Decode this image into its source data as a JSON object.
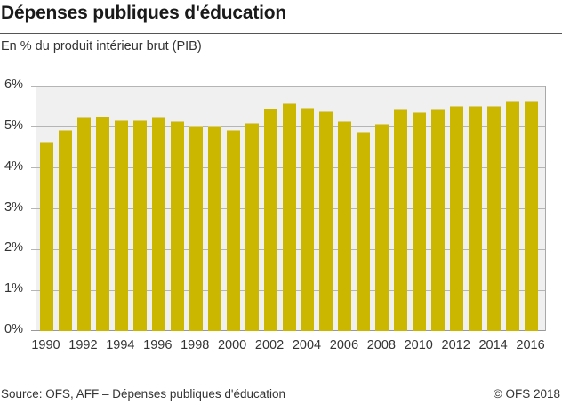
{
  "header": {
    "title": "Dépenses publiques d'éducation",
    "subtitle": "En % du produit intérieur brut (PIB)"
  },
  "footer": {
    "source": "Source: OFS, AFF – Dépenses publiques d'éducation",
    "copyright": "© OFS 2018"
  },
  "colors": {
    "bar": "#cbb600",
    "plot_background": "#f0f0f0",
    "gridline": "#b5b5b5"
  },
  "axis": {
    "y_ticks": [
      "0%",
      "1%",
      "2%",
      "3%",
      "4%",
      "5%",
      "6%"
    ],
    "x_ticks": [
      "1990",
      "1992",
      "1994",
      "1996",
      "1998",
      "2000",
      "2002",
      "2004",
      "2006",
      "2008",
      "2010",
      "2012",
      "2014",
      "2016"
    ]
  },
  "chart_data": {
    "type": "bar",
    "title": "Dépenses publiques d'éducation",
    "subtitle": "En % du produit intérieur brut (PIB)",
    "xlabel": "",
    "ylabel": "",
    "categories": [
      "1990",
      "1991",
      "1992",
      "1993",
      "1994",
      "1995",
      "1996",
      "1997",
      "1998",
      "1999",
      "2000",
      "2001",
      "2002",
      "2003",
      "2004",
      "2005",
      "2006",
      "2007",
      "2008",
      "2009",
      "2010",
      "2011",
      "2012",
      "2013",
      "2014",
      "2015",
      "2016"
    ],
    "values": [
      4.63,
      4.94,
      5.23,
      5.25,
      5.18,
      5.18,
      5.23,
      5.14,
      5.01,
      5.01,
      4.93,
      5.1,
      5.46,
      5.59,
      5.48,
      5.38,
      5.15,
      4.88,
      5.09,
      5.44,
      5.36,
      5.43,
      5.51,
      5.52,
      5.53,
      5.62,
      5.63
    ],
    "ylim": [
      0,
      6
    ],
    "y_tick_labels": [
      "0%",
      "1%",
      "2%",
      "3%",
      "4%",
      "5%",
      "6%"
    ],
    "x_tick_labels": [
      "1990",
      "1992",
      "1994",
      "1996",
      "1998",
      "2000",
      "2002",
      "2004",
      "2006",
      "2008",
      "2010",
      "2012",
      "2014",
      "2016"
    ],
    "grid": true,
    "legend": null,
    "source": "Source: OFS, AFF – Dépenses publiques d'éducation",
    "copyright": "© OFS 2018"
  }
}
